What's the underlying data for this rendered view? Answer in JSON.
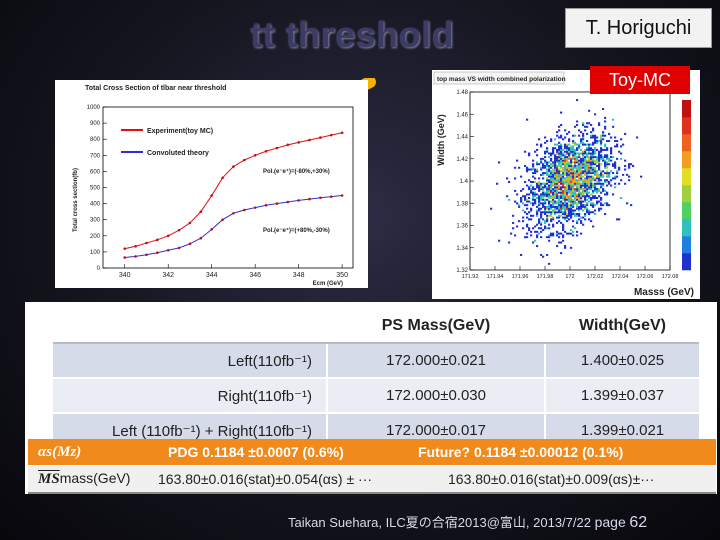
{
  "slide": {
    "title": "tt threshold",
    "author": "T. Horiguchi",
    "toy_mc_label": "Toy-MC",
    "footer": "Taikan Suehara, ILC夏の合宿2013@富山, 2013/7/22",
    "page_word": "page",
    "page_number": "62"
  },
  "left_plot": {
    "title": "Total Cross Section of tlbar near threshold",
    "ylabel": "Total cross section(fb)",
    "xlabel": "Ecm (GeV)",
    "legend": [
      "Experiment(toy MC)",
      "Convoluted theory"
    ],
    "annotations": [
      "Pol.(e⁻e⁺)=(-80%,+30%)",
      "Pol.(e⁻e⁺)=(+80%,-30%)"
    ],
    "xticks": [
      "340",
      "342",
      "344",
      "346",
      "348",
      "350"
    ],
    "yticks": [
      "0",
      "100",
      "200",
      "300",
      "400",
      "500",
      "600",
      "700",
      "800",
      "900",
      "1000"
    ]
  },
  "right_plot": {
    "title": "top mass VS width combined polarization",
    "ylabel": "Width (GeV)",
    "xlabel": "Masss (GeV)",
    "xticks": [
      "171.92",
      "171.94",
      "171.96",
      "171.98",
      "172",
      "172.02",
      "172.04",
      "172.06",
      "172.08"
    ],
    "yticks": [
      "1.32",
      "1.34",
      "1.36",
      "1.38",
      "1.4",
      "1.42",
      "1.44",
      "1.46",
      "1.48"
    ]
  },
  "table": {
    "headers": [
      "",
      "PS Mass(GeV)",
      "Width(GeV)"
    ],
    "rows": [
      {
        "label": "Left(110fb⁻¹)",
        "mass": "172.000±0.021",
        "width": "1.400±0.025"
      },
      {
        "label": "Right(110fb⁻¹)",
        "mass": "172.000±0.030",
        "width": "1.399±0.037"
      },
      {
        "label": "Left (110fb⁻¹) + Right(110fb⁻¹)",
        "mass": "172.000±0.017",
        "width": "1.399±0.021"
      }
    ],
    "alpha_row": {
      "label": "αs(Mz)",
      "pdg": "PDG 0.1184 ±0.0007 (0.6%)",
      "future": "Future? 0.1184 ±0.00012 (0.1%)"
    },
    "ms_row": {
      "label": "MS",
      "label_suffix": "mass(GeV)",
      "current": "163.80±0.016(stat)±0.054(αs) ± ···",
      "future": "163.80±0.016(stat)±0.009(αs)±···"
    }
  },
  "chart_data": [
    {
      "type": "line",
      "title": "Total Cross Section of tlbar near threshold",
      "xlabel": "Ecm (GeV)",
      "ylabel": "Total cross section(fb)",
      "xlim": [
        339,
        350.5
      ],
      "ylim": [
        0,
        1000
      ],
      "legend_position": "top-left",
      "series": [
        {
          "name": "Experiment(toy MC)",
          "color": "#e01010",
          "x": [
            340,
            340.5,
            341,
            341.5,
            342,
            342.5,
            343,
            343.5,
            344,
            344.5,
            345,
            345.5,
            346,
            346.5,
            347,
            347.5,
            348,
            348.5,
            349,
            349.5,
            350
          ],
          "y": [
            120,
            135,
            155,
            175,
            200,
            235,
            280,
            350,
            450,
            560,
            630,
            670,
            700,
            725,
            745,
            765,
            780,
            795,
            810,
            825,
            840
          ]
        },
        {
          "name": "Convoluted theory",
          "color": "#3030d0",
          "x": [
            340,
            340.5,
            341,
            341.5,
            342,
            342.5,
            343,
            343.5,
            344,
            344.5,
            345,
            345.5,
            346,
            346.5,
            347,
            347.5,
            348,
            348.5,
            349,
            349.5,
            350
          ],
          "y": [
            65,
            72,
            82,
            95,
            110,
            125,
            150,
            185,
            240,
            300,
            340,
            360,
            375,
            390,
            400,
            410,
            420,
            428,
            436,
            443,
            450
          ]
        }
      ]
    },
    {
      "type": "heatmap",
      "title": "top mass VS width combined polarization",
      "xlabel": "Masss (GeV)",
      "ylabel": "Width (GeV)",
      "xlim": [
        171.92,
        172.08
      ],
      "ylim": [
        1.32,
        1.48
      ],
      "center": {
        "x": 172.0,
        "y": 1.4
      },
      "sigma": {
        "x": 0.017,
        "y": 0.021
      }
    }
  ],
  "colors": {
    "accent_orange": "#f18a1c",
    "toy_mc_red": "#e00000",
    "title_text": "#3b3b63"
  }
}
